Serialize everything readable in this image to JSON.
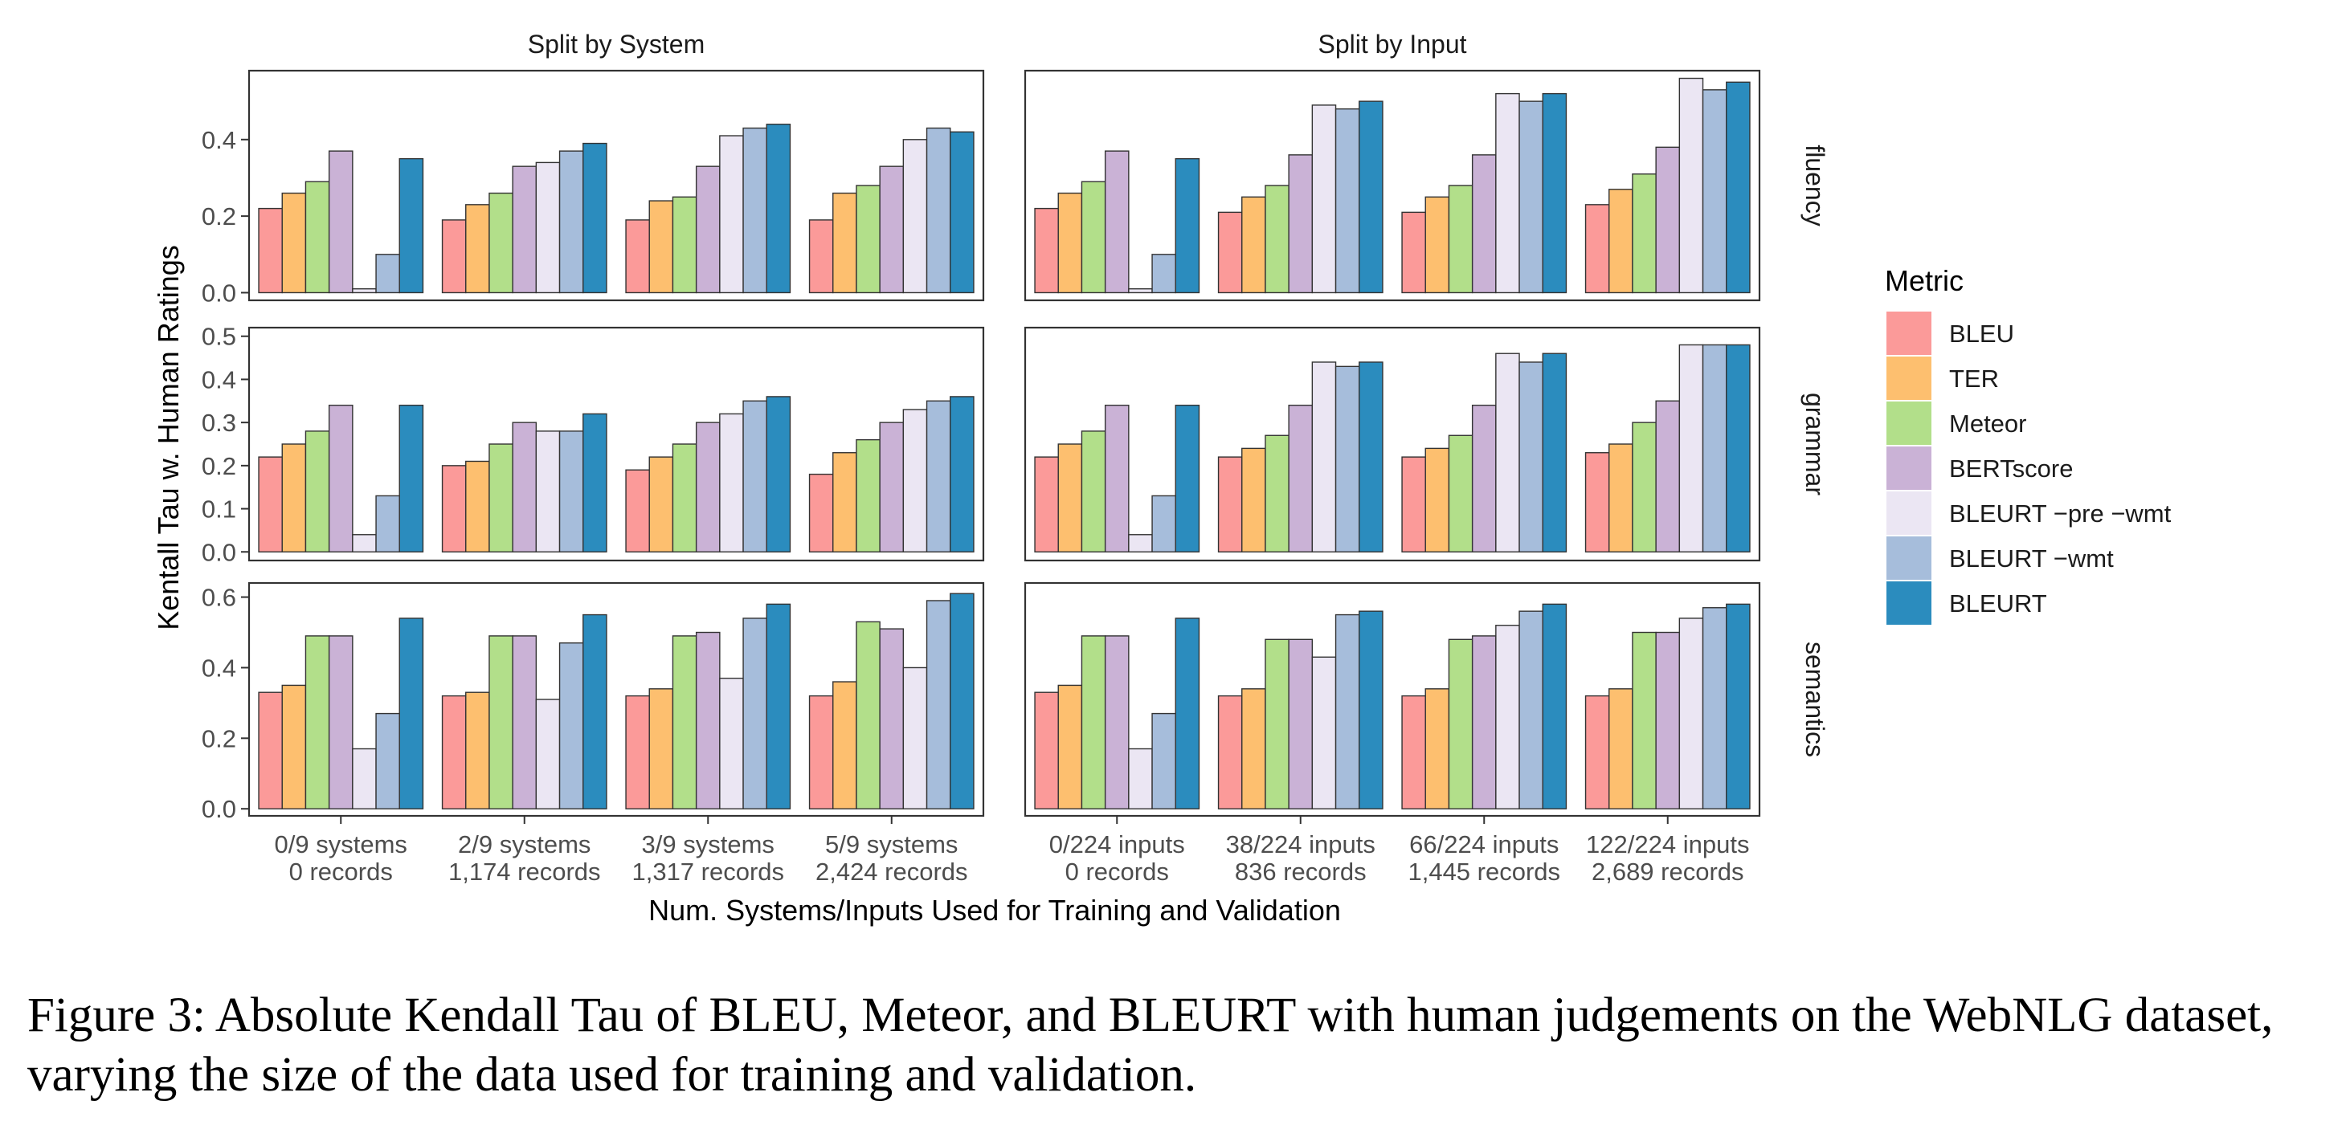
{
  "chart_data": {
    "type": "bar",
    "facet_columns": [
      "Split by System",
      "Split by Input"
    ],
    "facet_rows": [
      "fluency",
      "grammar",
      "semantics"
    ],
    "ylabel": "Kentall Tau w. Human Ratings",
    "xlabel": "Num. Systems/Inputs Used for Training and Validation",
    "legend_title": "Metric",
    "legend_position": "right",
    "grid": false,
    "metrics": [
      {
        "name": "BLEU",
        "color": "#fb9a99"
      },
      {
        "name": "TER",
        "color": "#fdbf6f"
      },
      {
        "name": "Meteor",
        "color": "#b2df8a"
      },
      {
        "name": "BERTscore",
        "color": "#cab2d6"
      },
      {
        "name": "BLEURT −pre −wmt",
        "color": "#ebe6f3"
      },
      {
        "name": "BLEURT −wmt",
        "color": "#a6bddb"
      },
      {
        "name": "BLEURT",
        "color": "#2b8cbe"
      }
    ],
    "categories": {
      "Split by System": [
        [
          "0/9 systems",
          "0 records"
        ],
        [
          "2/9 systems",
          "1,174 records"
        ],
        [
          "3/9 systems",
          "1,317 records"
        ],
        [
          "5/9 systems",
          "2,424 records"
        ]
      ],
      "Split by Input": [
        [
          "0/224 inputs",
          "0 records"
        ],
        [
          "38/224 inputs",
          "836 records"
        ],
        [
          "66/224 inputs",
          "1,445 records"
        ],
        [
          "122/224 inputs",
          "2,689 records"
        ]
      ]
    },
    "y_axes": {
      "fluency": {
        "ylim": [
          -0.02,
          0.58
        ],
        "ticks": [
          "0.0",
          "0.2",
          "0.4"
        ],
        "tick_values": [
          0,
          0.2,
          0.4
        ]
      },
      "grammar": {
        "ylim": [
          -0.02,
          0.52
        ],
        "ticks": [
          "0.0",
          "0.1",
          "0.2",
          "0.3",
          "0.4",
          "0.5"
        ],
        "tick_values": [
          0,
          0.1,
          0.2,
          0.3,
          0.4,
          0.5
        ]
      },
      "semantics": {
        "ylim": [
          -0.02,
          0.64
        ],
        "ticks": [
          "0.0",
          "0.2",
          "0.4",
          "0.6"
        ],
        "tick_values": [
          0,
          0.2,
          0.4,
          0.6
        ]
      }
    },
    "values": {
      "fluency": {
        "Split by System": [
          [
            0.22,
            0.26,
            0.29,
            0.37,
            0.01,
            0.1,
            0.35
          ],
          [
            0.19,
            0.23,
            0.26,
            0.33,
            0.34,
            0.37,
            0.39
          ],
          [
            0.19,
            0.24,
            0.25,
            0.33,
            0.41,
            0.43,
            0.44
          ],
          [
            0.19,
            0.26,
            0.28,
            0.33,
            0.4,
            0.43,
            0.42
          ]
        ],
        "Split by Input": [
          [
            0.22,
            0.26,
            0.29,
            0.37,
            0.01,
            0.1,
            0.35
          ],
          [
            0.21,
            0.25,
            0.28,
            0.36,
            0.49,
            0.48,
            0.5
          ],
          [
            0.21,
            0.25,
            0.28,
            0.36,
            0.52,
            0.5,
            0.52
          ],
          [
            0.23,
            0.27,
            0.31,
            0.38,
            0.56,
            0.53,
            0.55
          ]
        ]
      },
      "grammar": {
        "Split by System": [
          [
            0.22,
            0.25,
            0.28,
            0.34,
            0.04,
            0.13,
            0.34
          ],
          [
            0.2,
            0.21,
            0.25,
            0.3,
            0.28,
            0.28,
            0.32
          ],
          [
            0.19,
            0.22,
            0.25,
            0.3,
            0.32,
            0.35,
            0.36
          ],
          [
            0.18,
            0.23,
            0.26,
            0.3,
            0.33,
            0.35,
            0.36
          ]
        ],
        "Split by Input": [
          [
            0.22,
            0.25,
            0.28,
            0.34,
            0.04,
            0.13,
            0.34
          ],
          [
            0.22,
            0.24,
            0.27,
            0.34,
            0.44,
            0.43,
            0.44
          ],
          [
            0.22,
            0.24,
            0.27,
            0.34,
            0.46,
            0.44,
            0.46
          ],
          [
            0.23,
            0.25,
            0.3,
            0.35,
            0.48,
            0.48,
            0.48
          ]
        ]
      },
      "semantics": {
        "Split by System": [
          [
            0.33,
            0.35,
            0.49,
            0.49,
            0.17,
            0.27,
            0.54
          ],
          [
            0.32,
            0.33,
            0.49,
            0.49,
            0.31,
            0.47,
            0.55
          ],
          [
            0.32,
            0.34,
            0.49,
            0.5,
            0.37,
            0.54,
            0.58
          ],
          [
            0.32,
            0.36,
            0.53,
            0.51,
            0.4,
            0.59,
            0.61
          ]
        ],
        "Split by Input": [
          [
            0.33,
            0.35,
            0.49,
            0.49,
            0.17,
            0.27,
            0.54
          ],
          [
            0.32,
            0.34,
            0.48,
            0.48,
            0.43,
            0.55,
            0.56
          ],
          [
            0.32,
            0.34,
            0.48,
            0.49,
            0.52,
            0.56,
            0.58
          ],
          [
            0.32,
            0.34,
            0.5,
            0.5,
            0.54,
            0.57,
            0.58
          ]
        ]
      }
    }
  },
  "caption": "Figure 3: Absolute Kendall Tau of BLEU, Meteor, and BLEURT with human judgements on the WebNLG dataset, varying the size of the data used for training and validation."
}
